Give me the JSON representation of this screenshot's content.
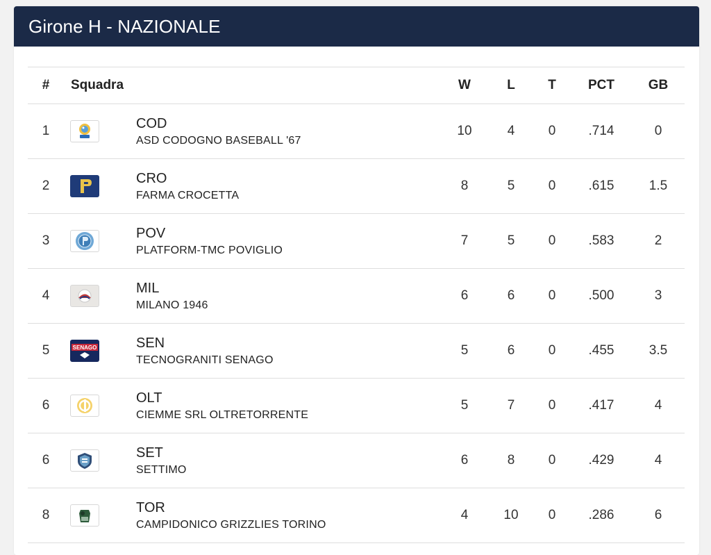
{
  "panel": {
    "title": "Girone H - NAZIONALE"
  },
  "columns": {
    "rank": "#",
    "team": "Squadra",
    "w": "W",
    "l": "L",
    "t": "T",
    "pct": "PCT",
    "gb": "GB"
  },
  "rows": [
    {
      "rank": "1",
      "abbr": "COD",
      "name": "ASD CODOGNO BASEBALL '67",
      "w": "10",
      "l": "4",
      "t": "0",
      "pct": ".714",
      "gb": "0",
      "logo": "codogno-logo"
    },
    {
      "rank": "2",
      "abbr": "CRO",
      "name": "FARMA CROCETTA",
      "w": "8",
      "l": "5",
      "t": "0",
      "pct": ".615",
      "gb": "1.5",
      "logo": "crocetta-logo"
    },
    {
      "rank": "3",
      "abbr": "POV",
      "name": "PLATFORM-TMC POVIGLIO",
      "w": "7",
      "l": "5",
      "t": "0",
      "pct": ".583",
      "gb": "2",
      "logo": "poviglio-logo"
    },
    {
      "rank": "4",
      "abbr": "MIL",
      "name": "MILANO 1946",
      "w": "6",
      "l": "6",
      "t": "0",
      "pct": ".500",
      "gb": "3",
      "logo": "milano-logo"
    },
    {
      "rank": "5",
      "abbr": "SEN",
      "name": "TECNOGRANITI SENAGO",
      "w": "5",
      "l": "6",
      "t": "0",
      "pct": ".455",
      "gb": "3.5",
      "logo": "senago-logo"
    },
    {
      "rank": "6",
      "abbr": "OLT",
      "name": "CIEMME SRL OLTRETORRENTE",
      "w": "5",
      "l": "7",
      "t": "0",
      "pct": ".417",
      "gb": "4",
      "logo": "oltretorrente-logo"
    },
    {
      "rank": "6",
      "abbr": "SET",
      "name": "SETTIMO",
      "w": "6",
      "l": "8",
      "t": "0",
      "pct": ".429",
      "gb": "4",
      "logo": "settimo-logo"
    },
    {
      "rank": "8",
      "abbr": "TOR",
      "name": "CAMPIDONICO GRIZZLIES TORINO",
      "w": "4",
      "l": "10",
      "t": "0",
      "pct": ".286",
      "gb": "6",
      "logo": "torino-logo"
    }
  ],
  "logo_text": {
    "senago": "SENAGO"
  },
  "colors": {
    "header_bg": "#1b2a47",
    "header_text": "#ffffff",
    "row_border": "#dedede"
  }
}
